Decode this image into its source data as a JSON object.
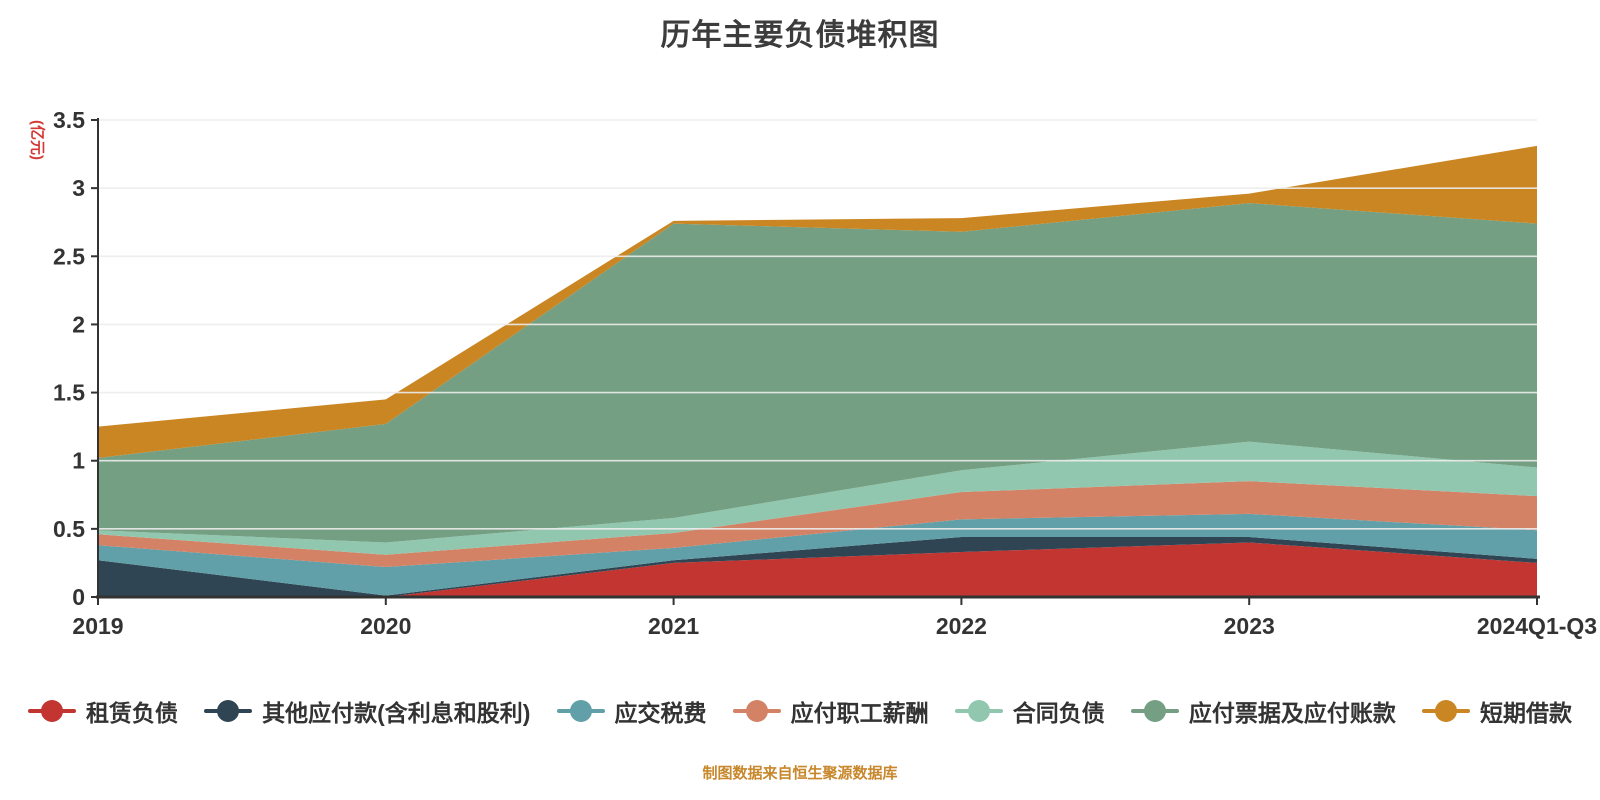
{
  "title": "历年主要负债堆积图",
  "source_note": "制图数据来自恒生聚源数据库",
  "chart_data": {
    "type": "area",
    "stacked": true,
    "title": "历年主要负债堆积图",
    "y_axis_name": "(亿元)",
    "y_axis_name_color": "#d23a36",
    "grid": true,
    "legend_position": "bottom",
    "ylim": [
      0,
      3.5
    ],
    "y_ticks": [
      "0",
      "0.5",
      "1",
      "1.5",
      "2",
      "2.5",
      "3",
      "3.5"
    ],
    "categories": [
      "2019",
      "2020",
      "2021",
      "2022",
      "2023",
      "2024Q1-Q3"
    ],
    "series": [
      {
        "name": "租赁负债",
        "key": "lease-liabilities",
        "color": "#c23531",
        "values": [
          0.0,
          0.0,
          0.25,
          0.33,
          0.4,
          0.25
        ]
      },
      {
        "name": "其他应付款(含利息和股利)",
        "key": "other-payables",
        "color": "#2f4554",
        "values": [
          0.27,
          0.01,
          0.02,
          0.11,
          0.04,
          0.03
        ]
      },
      {
        "name": "应交税费",
        "key": "taxes-payable",
        "color": "#61a0a8",
        "values": [
          0.11,
          0.21,
          0.09,
          0.13,
          0.17,
          0.21
        ]
      },
      {
        "name": "应付职工薪酬",
        "key": "payroll-payable",
        "color": "#d48265",
        "values": [
          0.08,
          0.09,
          0.11,
          0.2,
          0.24,
          0.25
        ]
      },
      {
        "name": "合同负债",
        "key": "contract-liabilities",
        "color": "#91c7ae",
        "values": [
          0.03,
          0.09,
          0.11,
          0.16,
          0.29,
          0.21
        ]
      },
      {
        "name": "应付票据及应付账款",
        "key": "notes-and-accounts-payable",
        "color": "#749f83",
        "values": [
          0.53,
          0.87,
          2.16,
          1.75,
          1.75,
          1.79
        ]
      },
      {
        "name": "短期借款",
        "key": "short-term-borrowings",
        "color": "#ca8622",
        "values": [
          0.23,
          0.18,
          0.02,
          0.1,
          0.07,
          0.57
        ]
      }
    ],
    "totals": [
      1.25,
      1.45,
      2.76,
      2.78,
      2.96,
      3.31
    ]
  },
  "axis_colors": {
    "axis_line": "#333333",
    "tick_label": "#333333",
    "gridline": "rgba(236,236,236,0.9)"
  }
}
